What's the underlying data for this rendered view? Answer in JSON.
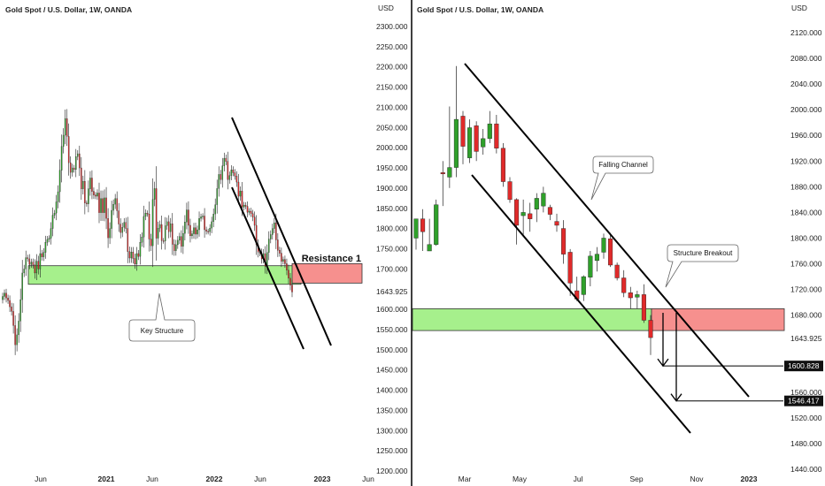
{
  "colors": {
    "up": "#2fa02a",
    "down": "#e02a2a",
    "wick": "#222222",
    "green_zone": "#a6f08c",
    "red_zone": "#f6908e",
    "divider": "#000000",
    "grid_text": "#222222",
    "marker_bg": "#111111",
    "marker_text": "#ffffff"
  },
  "chart_data": [
    {
      "type": "candlestick",
      "title": "Gold Spot / U.S. Dollar, 1W, OANDA",
      "currency": "USD",
      "y_ticks": [
        "2300.000",
        "2250.000",
        "2200.000",
        "2150.000",
        "2100.000",
        "2050.000",
        "2000.000",
        "1950.000",
        "1900.000",
        "1850.000",
        "1800.000",
        "1750.000",
        "1700.000",
        "1643.925",
        "1600.000",
        "1550.000",
        "1500.000",
        "1450.000",
        "1400.000",
        "1350.000",
        "1300.000",
        "1250.000",
        "1200.000"
      ],
      "y_tick_values": [
        2300,
        2250,
        2200,
        2150,
        2100,
        2050,
        2000,
        1950,
        1900,
        1850,
        1800,
        1750,
        1700,
        1643.925,
        1600,
        1550,
        1500,
        1450,
        1400,
        1350,
        1300,
        1250,
        1200
      ],
      "ylim": [
        1180,
        2320
      ],
      "x_ticks": [
        "Jun",
        "2021",
        "Jun",
        "2022",
        "Jun",
        "2023",
        "Jun"
      ],
      "bold_x_ticks": [
        "2021",
        "2022",
        "2023"
      ],
      "annotations": {
        "resistance_label": "Resistance 1",
        "key_structure_label": "Key Structure"
      },
      "zones": {
        "support": [
          1662,
          1708
        ],
        "resistance": [
          1665,
          1713
        ]
      },
      "closes": [
        1632,
        1640,
        1628,
        1622,
        1606,
        1595,
        1560,
        1512,
        1537,
        1571,
        1624,
        1690,
        1700,
        1728,
        1725,
        1711,
        1717,
        1710,
        1690,
        1719,
        1700,
        1738,
        1730,
        1741,
        1766,
        1773,
        1776,
        1800,
        1833,
        1838,
        1866,
        1891,
        1944,
        2003,
        2031,
        2072,
        2028,
        1963,
        1939,
        1950,
        1946,
        1978,
        1985,
        1950,
        1898,
        1917,
        1863,
        1861,
        1898,
        1925,
        1892,
        1883,
        1880,
        1888,
        1839,
        1874,
        1839,
        1876,
        1825,
        1777,
        1800,
        1845,
        1860,
        1874,
        1844,
        1811,
        1790,
        1803,
        1815,
        1800,
        1743,
        1727,
        1742,
        1726,
        1712,
        1738,
        1731,
        1766,
        1779,
        1830,
        1838,
        1836,
        1774,
        1757,
        1872,
        1899,
        1776,
        1801,
        1810,
        1770,
        1769,
        1807,
        1817,
        1792,
        1812,
        1761,
        1745,
        1760,
        1771,
        1780,
        1756,
        1788,
        1816,
        1846,
        1808,
        1782,
        1787,
        1802,
        1786,
        1797,
        1825,
        1829,
        1831,
        1797,
        1793,
        1792,
        1801,
        1817,
        1836,
        1859,
        1899,
        1934,
        1921,
        1955,
        1974,
        1966,
        1921,
        1931,
        1945,
        1938,
        1930,
        1915,
        1880,
        1893,
        1853,
        1858,
        1855,
        1840,
        1843,
        1837,
        1828,
        1808,
        1760,
        1742,
        1739,
        1725,
        1738,
        1707,
        1741,
        1774,
        1785,
        1800,
        1814,
        1772,
        1746,
        1739,
        1719,
        1723,
        1713,
        1697,
        1677,
        1660,
        1643
      ]
    },
    {
      "type": "candlestick",
      "title": "Gold Spot / U.S. Dollar, 1W, OANDA",
      "currency": "USD",
      "y_ticks": [
        "2120.000",
        "2080.000",
        "2040.000",
        "2000.000",
        "1960.000",
        "1920.000",
        "1880.000",
        "1840.000",
        "1800.000",
        "1760.000",
        "1720.000",
        "1680.000",
        "1643.925",
        "1560.000",
        "1520.000",
        "1480.000",
        "1440.000"
      ],
      "y_tick_values": [
        2120,
        2080,
        2040,
        2000,
        1960,
        1920,
        1880,
        1840,
        1800,
        1760,
        1720,
        1680,
        1643.925,
        1560,
        1520,
        1480,
        1440
      ],
      "ylim": [
        1432,
        2138
      ],
      "x_ticks": [
        "Mar",
        "May",
        "Jul",
        "Sep",
        "Nov",
        "2023"
      ],
      "bold_x_ticks": [
        "2023"
      ],
      "annotations": {
        "falling_channel_label": "Falling Channel",
        "structure_breakout_label": "Structure Breakout"
      },
      "zones": {
        "support": [
          1656,
          1690
        ],
        "resistance": [
          1656,
          1690
        ]
      },
      "targets": [
        "1600.828",
        "1546.417"
      ],
      "target_values": [
        1600.828,
        1546.417
      ],
      "candles": [
        {
          "o": 1800,
          "h": 1830,
          "l": 1782,
          "c": 1830
        },
        {
          "o": 1830,
          "h": 1845,
          "l": 1780,
          "c": 1810
        },
        {
          "o": 1780,
          "h": 1830,
          "l": 1785,
          "c": 1790
        },
        {
          "o": 1790,
          "h": 1860,
          "l": 1788,
          "c": 1852
        },
        {
          "o": 1902,
          "h": 1920,
          "l": 1850,
          "c": 1900
        },
        {
          "o": 1895,
          "h": 2005,
          "l": 1878,
          "c": 1910
        },
        {
          "o": 1910,
          "h": 2068,
          "l": 1895,
          "c": 1985
        },
        {
          "o": 1990,
          "h": 1998,
          "l": 1915,
          "c": 1943
        },
        {
          "o": 1925,
          "h": 1985,
          "l": 1917,
          "c": 1972
        },
        {
          "o": 1975,
          "h": 1982,
          "l": 1920,
          "c": 1935
        },
        {
          "o": 1942,
          "h": 1970,
          "l": 1930,
          "c": 1955
        },
        {
          "o": 1955,
          "h": 1998,
          "l": 1948,
          "c": 1978
        },
        {
          "o": 1978,
          "h": 1992,
          "l": 1932,
          "c": 1940
        },
        {
          "o": 1940,
          "h": 1948,
          "l": 1880,
          "c": 1888
        },
        {
          "o": 1888,
          "h": 1895,
          "l": 1855,
          "c": 1860
        },
        {
          "o": 1860,
          "h": 1862,
          "l": 1790,
          "c": 1820
        },
        {
          "o": 1835,
          "h": 1860,
          "l": 1805,
          "c": 1840
        },
        {
          "o": 1838,
          "h": 1855,
          "l": 1810,
          "c": 1830
        },
        {
          "o": 1845,
          "h": 1870,
          "l": 1825,
          "c": 1862
        },
        {
          "o": 1850,
          "h": 1880,
          "l": 1840,
          "c": 1870
        },
        {
          "o": 1848,
          "h": 1852,
          "l": 1828,
          "c": 1837
        },
        {
          "o": 1826,
          "h": 1838,
          "l": 1810,
          "c": 1820
        },
        {
          "o": 1815,
          "h": 1828,
          "l": 1760,
          "c": 1775
        },
        {
          "o": 1778,
          "h": 1783,
          "l": 1710,
          "c": 1730
        },
        {
          "o": 1718,
          "h": 1740,
          "l": 1702,
          "c": 1705
        },
        {
          "o": 1712,
          "h": 1742,
          "l": 1702,
          "c": 1740
        },
        {
          "o": 1739,
          "h": 1780,
          "l": 1725,
          "c": 1772
        },
        {
          "o": 1765,
          "h": 1786,
          "l": 1748,
          "c": 1775
        },
        {
          "o": 1778,
          "h": 1807,
          "l": 1768,
          "c": 1800
        },
        {
          "o": 1799,
          "h": 1808,
          "l": 1755,
          "c": 1758
        },
        {
          "o": 1758,
          "h": 1762,
          "l": 1734,
          "c": 1738
        },
        {
          "o": 1738,
          "h": 1750,
          "l": 1708,
          "c": 1715
        },
        {
          "o": 1715,
          "h": 1724,
          "l": 1690,
          "c": 1707
        },
        {
          "o": 1708,
          "h": 1718,
          "l": 1690,
          "c": 1712
        },
        {
          "o": 1712,
          "h": 1728,
          "l": 1668,
          "c": 1672
        },
        {
          "o": 1672,
          "h": 1680,
          "l": 1618,
          "c": 1645
        }
      ]
    }
  ]
}
